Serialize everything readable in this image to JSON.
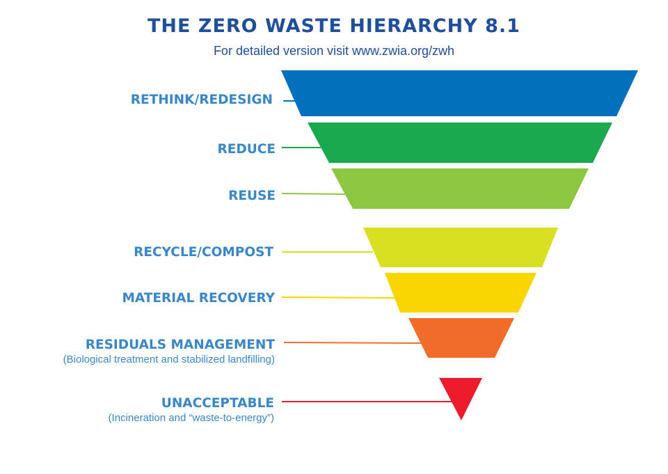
{
  "title": "THE ZERO WASTE HIERARCHY 8.1",
  "subtitle": "For detailed version visit www.zwia.org/zwh",
  "levels": [
    {
      "label": "RETHINK/REDESIGN",
      "color": "#0271bc"
    },
    {
      "label": "REDUCE",
      "color": "#1aa84f"
    },
    {
      "label": "REUSE",
      "color": "#8dc641"
    },
    {
      "label": "RECYCLE/COMPOST",
      "color": "#d9e021"
    },
    {
      "label": "MATERIAL RECOVERY",
      "color": "#f9d602"
    },
    {
      "label": "RESIDUALS MANAGEMENT",
      "sublabel": "(Biological treatment and stabilized landfilling)",
      "color": "#f26d2a"
    },
    {
      "label": "UNACCEPTABLE",
      "sublabel": "(Incineration and “waste-to-energy”)",
      "color": "#ec1c2d"
    }
  ]
}
